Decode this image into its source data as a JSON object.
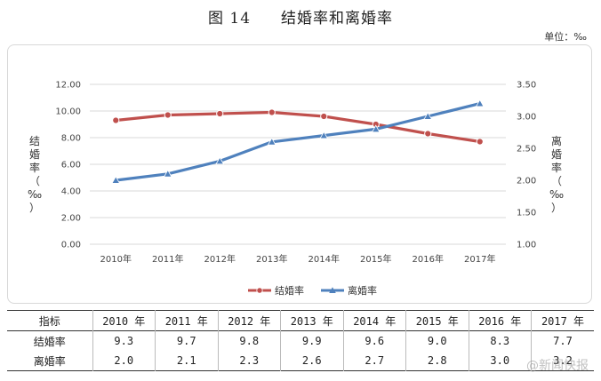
{
  "figure": {
    "title_number": "图 14",
    "title_text": "结婚率和离婚率",
    "unit": "单位：‰"
  },
  "chart_data": {
    "type": "line",
    "title": "结婚率和离婚率",
    "categories": [
      "2010年",
      "2011年",
      "2012年",
      "2013年",
      "2014年",
      "2015年",
      "2016年",
      "2017年"
    ],
    "series": [
      {
        "name": "结婚率",
        "axis": "left",
        "color": "#c0504d",
        "marker": "circle",
        "values": [
          9.3,
          9.7,
          9.8,
          9.9,
          9.6,
          9.0,
          8.3,
          7.7
        ]
      },
      {
        "name": "离婚率",
        "axis": "right",
        "color": "#4f81bd",
        "marker": "triangle",
        "values": [
          2.0,
          2.1,
          2.3,
          2.6,
          2.7,
          2.8,
          3.0,
          3.2
        ]
      }
    ],
    "ylabel_left": "结婚率（‰）",
    "ylabel_right": "离婚率（‰）",
    "ylim_left": [
      0,
      12
    ],
    "ylim_right": [
      1,
      3.5
    ],
    "yticks_left": [
      "0.00",
      "2.00",
      "4.00",
      "6.00",
      "8.00",
      "10.00",
      "12.00"
    ],
    "yticks_right": [
      "1.00",
      "1.50",
      "2.00",
      "2.50",
      "3.00",
      "3.50"
    ],
    "legend_position": "bottom",
    "grid": true
  },
  "table": {
    "header_label": "指标",
    "years": [
      "2010 年",
      "2011 年",
      "2012 年",
      "2013 年",
      "2014 年",
      "2015 年",
      "2016 年",
      "2017 年"
    ],
    "rows": [
      {
        "label": "结婚率",
        "values": [
          "9.3",
          "9.7",
          "9.8",
          "9.9",
          "9.6",
          "9.0",
          "8.3",
          "7.7"
        ]
      },
      {
        "label": "离婚率",
        "values": [
          "2.0",
          "2.1",
          "2.3",
          "2.6",
          "2.7",
          "2.8",
          "3.0",
          "3.2"
        ]
      }
    ]
  },
  "watermark": "@新闻快报"
}
